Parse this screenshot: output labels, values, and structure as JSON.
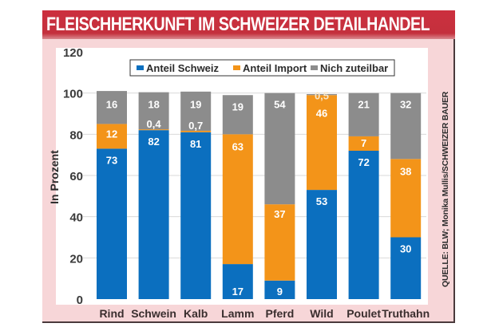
{
  "title": "FLEISCHHERKUNFT IM SCHWEIZER DETAILHANDEL",
  "source": "QUELLE: BLW; Monika Mullis/SCHWEIZER BAUER",
  "colors": {
    "schweiz": "#0b6fbf",
    "import": "#f39419",
    "nicht": "#8c8c8c",
    "title_bg": "#c8303e",
    "frame_bg": "#f7d6d8"
  },
  "chart_data": {
    "type": "bar",
    "stacked": true,
    "title": "FLEISCHHERKUNFT IM SCHWEIZER DETAILHANDEL",
    "xlabel": "",
    "ylabel": "In Prozent",
    "ylim": [
      0,
      120
    ],
    "yticks": [
      0,
      20,
      40,
      60,
      80,
      100,
      120
    ],
    "grid": true,
    "legend_position": "top",
    "categories": [
      "Rind",
      "Schwein",
      "Kalb",
      "Lamm",
      "Pferd",
      "Wild",
      "Poulet",
      "Truthahn"
    ],
    "series": [
      {
        "name": "Anteil Schweiz",
        "color": "#0b6fbf",
        "values": [
          73,
          82,
          81,
          17,
          9,
          53,
          72,
          30
        ],
        "labels": [
          "73",
          "82",
          "81",
          "17",
          "9",
          "53",
          "72",
          "30"
        ]
      },
      {
        "name": "Anteil Import",
        "color": "#f39419",
        "values": [
          12,
          0.4,
          0.7,
          63,
          37,
          46,
          7,
          38
        ],
        "labels": [
          "12",
          "0,4",
          "0,7",
          "63",
          "37",
          "46",
          "7",
          "38"
        ]
      },
      {
        "name": "Nich zuteilbar",
        "color": "#8c8c8c",
        "values": [
          16,
          18,
          19,
          19,
          54,
          0.5,
          21,
          32
        ],
        "labels": [
          "16",
          "18",
          "19",
          "19",
          "54",
          "0,5",
          "21",
          "32"
        ]
      }
    ]
  }
}
